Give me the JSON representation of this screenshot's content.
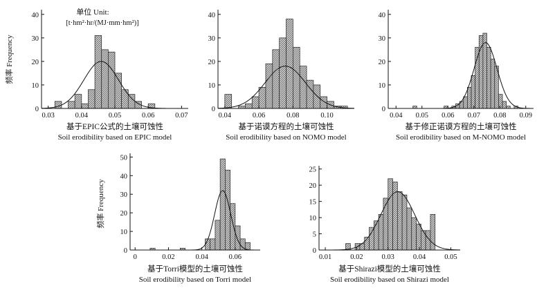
{
  "figure": {
    "unit_line1": "单位 Unit:",
    "unit_line2": "[t·hm²·hr/(MJ·mm·hm²)]"
  },
  "chart_data": [
    {
      "id": "epic",
      "type": "bar",
      "subtype": "histogram",
      "title_cn": "基于EPIC公式的土壤可蚀性",
      "title_en": "Soil erodibility based on EPIC model",
      "ylabel": "频率 Frequency",
      "xlim": [
        0.028,
        0.072
      ],
      "ylim": [
        0,
        42
      ],
      "xticks": [
        0.03,
        0.04,
        0.05,
        0.06,
        0.07
      ],
      "xtick_labels": [
        "0.03",
        "0.04",
        "0.05",
        "0.06",
        "0.07"
      ],
      "yticks": [
        0,
        10,
        20,
        30,
        40
      ],
      "bin_width": 0.002,
      "bins": [
        [
          0.032,
          3
        ],
        [
          0.036,
          3
        ],
        [
          0.038,
          6
        ],
        [
          0.04,
          2
        ],
        [
          0.042,
          8
        ],
        [
          0.044,
          31
        ],
        [
          0.046,
          25
        ],
        [
          0.048,
          24
        ],
        [
          0.05,
          15
        ],
        [
          0.052,
          8
        ],
        [
          0.054,
          6
        ],
        [
          0.056,
          3
        ],
        [
          0.06,
          2
        ]
      ],
      "curve": {
        "mean": 0.0459,
        "sd": 0.0052,
        "peak": 20
      }
    },
    {
      "id": "nomo",
      "type": "bar",
      "subtype": "histogram",
      "title_cn": "基于诺谟方程的土壤可蚀性",
      "title_en": "Soil erodibility based on NOMO model",
      "ylabel": "",
      "xlim": [
        0.036,
        0.116
      ],
      "ylim": [
        0,
        42
      ],
      "xticks": [
        0.04,
        0.06,
        0.08,
        0.1
      ],
      "xtick_labels": [
        "0.04",
        "0.06",
        "0.08",
        "0.10"
      ],
      "yticks": [
        0,
        10,
        20,
        30,
        40
      ],
      "bin_width": 0.004,
      "bins": [
        [
          0.04,
          6
        ],
        [
          0.048,
          1
        ],
        [
          0.052,
          2
        ],
        [
          0.056,
          5
        ],
        [
          0.06,
          9
        ],
        [
          0.064,
          19
        ],
        [
          0.068,
          25
        ],
        [
          0.072,
          30
        ],
        [
          0.076,
          38
        ],
        [
          0.08,
          26
        ],
        [
          0.084,
          18
        ],
        [
          0.088,
          12
        ],
        [
          0.092,
          10
        ],
        [
          0.096,
          5
        ],
        [
          0.1,
          3
        ],
        [
          0.104,
          1
        ],
        [
          0.108,
          1
        ]
      ],
      "curve": {
        "mean": 0.0755,
        "sd": 0.0119,
        "peak": 18
      }
    },
    {
      "id": "mnomo",
      "type": "bar",
      "subtype": "histogram",
      "title_cn": "基于修正诺谟方程的土壤可蚀性",
      "title_en": "Soil erodibility based on M-NOMO model",
      "ylabel": "",
      "xlim": [
        0.037,
        0.093
      ],
      "ylim": [
        0,
        42
      ],
      "xticks": [
        0.04,
        0.05,
        0.06,
        0.07,
        0.08,
        0.09
      ],
      "xtick_labels": [
        "0.04",
        "0.05",
        "0.06",
        "0.07",
        "0.08",
        "0.09"
      ],
      "yticks": [
        0,
        10,
        20,
        30,
        40
      ],
      "bin_width": 0.0015,
      "bins": [
        [
          0.0465,
          1
        ],
        [
          0.0585,
          1
        ],
        [
          0.0615,
          1
        ],
        [
          0.063,
          2
        ],
        [
          0.0645,
          3
        ],
        [
          0.066,
          5
        ],
        [
          0.0675,
          9
        ],
        [
          0.069,
          14
        ],
        [
          0.0705,
          26
        ],
        [
          0.072,
          31
        ],
        [
          0.0735,
          32
        ],
        [
          0.075,
          26
        ],
        [
          0.0765,
          21
        ],
        [
          0.078,
          18
        ],
        [
          0.0795,
          6
        ],
        [
          0.081,
          3
        ],
        [
          0.0825,
          1
        ],
        [
          0.0855,
          1
        ]
      ],
      "curve": {
        "mean": 0.0745,
        "sd": 0.0044,
        "peak": 28
      }
    },
    {
      "id": "torri",
      "type": "bar",
      "subtype": "histogram",
      "title_cn": "基于Torri模型的土壤可蚀性",
      "title_en": "Soil erodibility based on Torri model",
      "ylabel": "频率 Frequency",
      "xlim": [
        -0.003,
        0.075
      ],
      "ylim": [
        0,
        52
      ],
      "xticks": [
        0,
        0.02,
        0.04,
        0.06
      ],
      "xtick_labels": [
        "0",
        "0.02",
        "0.04",
        "0.06"
      ],
      "yticks": [
        0,
        10,
        20,
        30,
        40,
        50
      ],
      "bin_width": 0.003,
      "bins": [
        [
          0.009,
          1
        ],
        [
          0.027,
          1
        ],
        [
          0.042,
          6
        ],
        [
          0.045,
          6
        ],
        [
          0.048,
          16
        ],
        [
          0.051,
          49
        ],
        [
          0.054,
          43
        ],
        [
          0.057,
          25
        ],
        [
          0.06,
          13
        ],
        [
          0.063,
          6
        ],
        [
          0.066,
          4
        ]
      ],
      "curve": {
        "mean": 0.0525,
        "sd": 0.0048,
        "peak": 32
      }
    },
    {
      "id": "shirazi",
      "type": "bar",
      "subtype": "histogram",
      "title_cn": "基于Shirazi模型的土壤可蚀性",
      "title_en": "Soil erodibility based on Shirazi model",
      "ylabel": "",
      "xlim": [
        0.008,
        0.053
      ],
      "ylim": [
        0,
        26
      ],
      "xticks": [
        0.01,
        0.02,
        0.03,
        0.04,
        0.05
      ],
      "xtick_labels": [
        "0.01",
        "0.02",
        "0.03",
        "0.04",
        "0.05"
      ],
      "yticks": [
        0,
        5,
        10,
        15,
        20,
        25
      ],
      "bin_width": 0.0015,
      "bins": [
        [
          0.0165,
          2
        ],
        [
          0.0195,
          2
        ],
        [
          0.021,
          2
        ],
        [
          0.0225,
          4
        ],
        [
          0.024,
          7
        ],
        [
          0.0255,
          9
        ],
        [
          0.027,
          11
        ],
        [
          0.0285,
          16
        ],
        [
          0.03,
          22
        ],
        [
          0.0315,
          21
        ],
        [
          0.033,
          18
        ],
        [
          0.0345,
          17
        ],
        [
          0.036,
          13
        ],
        [
          0.0375,
          10
        ],
        [
          0.039,
          8
        ],
        [
          0.0405,
          6
        ],
        [
          0.042,
          6
        ],
        [
          0.0435,
          11
        ]
      ],
      "curve": {
        "mean": 0.0331,
        "sd": 0.0054,
        "peak": 18
      }
    }
  ]
}
